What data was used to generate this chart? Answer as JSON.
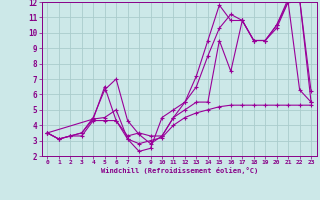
{
  "background_color": "#cce8e8",
  "grid_color": "#aacccc",
  "line_color": "#990099",
  "xlabel": "Windchill (Refroidissement éolien,°C)",
  "xlim": [
    -0.5,
    23.5
  ],
  "ylim": [
    2,
    12
  ],
  "yticks": [
    2,
    3,
    4,
    5,
    6,
    7,
    8,
    9,
    10,
    11,
    12
  ],
  "xticks": [
    0,
    1,
    2,
    3,
    4,
    5,
    6,
    7,
    8,
    9,
    10,
    11,
    12,
    13,
    14,
    15,
    16,
    17,
    18,
    19,
    20,
    21,
    22,
    23
  ],
  "series": [
    {
      "x": [
        0,
        1,
        2,
        3,
        4,
        5,
        6,
        7,
        8,
        9,
        10,
        11,
        12,
        13,
        14,
        15,
        16,
        17,
        18,
        19,
        20,
        21,
        22,
        23
      ],
      "y": [
        3.5,
        3.1,
        3.3,
        3.3,
        4.3,
        4.3,
        4.3,
        3.1,
        2.8,
        3.0,
        3.2,
        4.0,
        4.5,
        4.8,
        5.0,
        5.2,
        5.3,
        5.3,
        5.3,
        5.3,
        5.3,
        5.3,
        5.3,
        5.3
      ]
    },
    {
      "x": [
        0,
        1,
        2,
        3,
        4,
        5,
        6,
        7,
        8,
        9,
        10,
        11,
        12,
        13,
        14,
        15,
        16,
        17,
        18,
        19,
        20,
        21,
        22,
        23
      ],
      "y": [
        3.5,
        3.1,
        3.3,
        3.5,
        4.5,
        6.3,
        7.0,
        4.3,
        3.4,
        2.8,
        3.3,
        4.5,
        5.5,
        7.2,
        9.5,
        11.8,
        10.8,
        10.8,
        9.5,
        9.5,
        10.5,
        12.2,
        12.2,
        5.5
      ]
    },
    {
      "x": [
        0,
        1,
        2,
        3,
        4,
        5,
        6,
        7,
        8,
        9,
        10,
        11,
        12,
        13,
        14,
        15,
        16,
        17,
        18,
        19,
        20,
        21,
        22,
        23
      ],
      "y": [
        3.5,
        3.1,
        3.3,
        3.5,
        4.4,
        4.5,
        5.0,
        3.1,
        2.3,
        2.5,
        4.5,
        5.0,
        5.5,
        6.5,
        8.5,
        10.3,
        11.2,
        10.8,
        9.5,
        9.5,
        10.3,
        12.0,
        12.2,
        6.2
      ]
    },
    {
      "x": [
        0,
        4,
        5,
        6,
        7,
        8,
        9,
        10,
        11,
        12,
        13,
        14,
        15,
        16,
        17,
        18,
        19,
        20,
        21,
        22,
        23
      ],
      "y": [
        3.5,
        4.4,
        6.5,
        4.3,
        3.3,
        3.5,
        3.3,
        3.3,
        4.5,
        5.0,
        5.5,
        5.5,
        9.5,
        7.5,
        10.8,
        9.5,
        9.5,
        10.5,
        12.0,
        6.3,
        5.5
      ]
    }
  ]
}
